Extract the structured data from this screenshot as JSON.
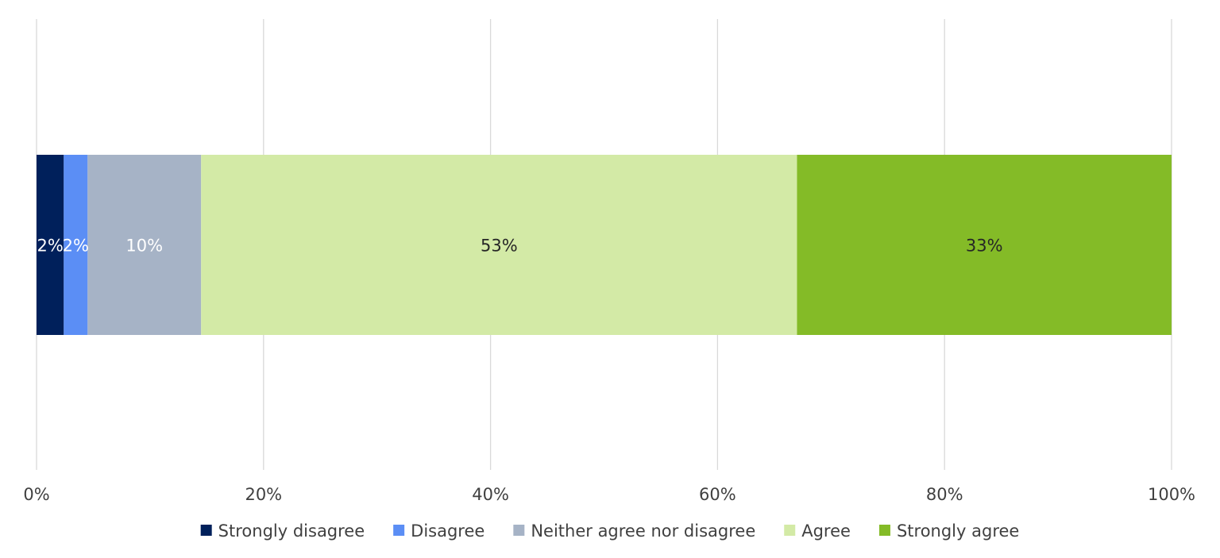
{
  "chart_data": {
    "type": "bar",
    "orientation": "horizontal",
    "stacked": true,
    "percent_stacked": true,
    "categories": [
      ""
    ],
    "series": [
      {
        "name": "Strongly disagree",
        "values": [
          2.4
        ],
        "label": "2%",
        "color": "#00205b",
        "label_color": "#ffffff"
      },
      {
        "name": "Disagree",
        "values": [
          2.1
        ],
        "label": "2%",
        "color": "#5b8ef5",
        "label_color": "#ffffff"
      },
      {
        "name": "Neither agree nor disagree",
        "values": [
          10.0
        ],
        "label": "10%",
        "color": "#a6b3c6",
        "label_color": "#ffffff"
      },
      {
        "name": "Agree",
        "values": [
          52.5
        ],
        "label": "53%",
        "color": "#d3eaa6",
        "label_color": "#262626"
      },
      {
        "name": "Strongly agree",
        "values": [
          33.0
        ],
        "label": "33%",
        "color": "#84bb27",
        "label_color": "#262626"
      }
    ],
    "x_ticks": [
      "0%",
      "20%",
      "40%",
      "60%",
      "80%",
      "100%"
    ],
    "xlim": [
      0,
      100
    ],
    "grid": "vertical",
    "legend_position": "bottom",
    "title": "",
    "xlabel": "",
    "ylabel": ""
  }
}
